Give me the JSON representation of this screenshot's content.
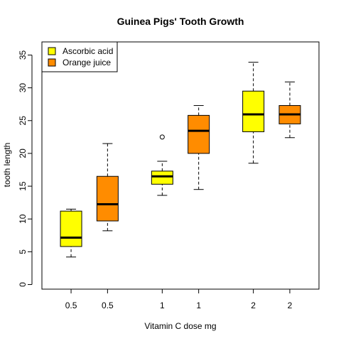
{
  "chart_data": {
    "type": "box",
    "title": "Guinea Pigs' Tooth Growth",
    "xlabel": "Vitamin C dose mg",
    "ylabel": "tooth length",
    "ylim": [
      -0.7,
      37.0
    ],
    "y_ticks": [
      0,
      5,
      10,
      15,
      20,
      25,
      30,
      35
    ],
    "legend_position": "top-left",
    "grid": false,
    "series": [
      {
        "name": "Ascorbic acid",
        "color": "#ffff00"
      },
      {
        "name": "Orange juice",
        "color": "#ff8c00"
      }
    ],
    "boxes": [
      {
        "label": "0.5",
        "series": 0,
        "x": 1.0,
        "whisker_low": 4.2,
        "q1": 5.8,
        "median": 7.15,
        "q3": 11.2,
        "whisker_high": 11.5,
        "outliers": []
      },
      {
        "label": "0.5",
        "series": 1,
        "x": 2.0,
        "whisker_low": 8.2,
        "q1": 9.7,
        "median": 12.25,
        "q3": 16.5,
        "whisker_high": 21.5,
        "outliers": []
      },
      {
        "label": "1",
        "series": 0,
        "x": 3.5,
        "whisker_low": 13.6,
        "q1": 15.3,
        "median": 16.5,
        "q3": 17.3,
        "whisker_high": 18.8,
        "outliers": [
          22.5
        ]
      },
      {
        "label": "1",
        "series": 1,
        "x": 4.5,
        "whisker_low": 14.5,
        "q1": 20.0,
        "median": 23.45,
        "q3": 25.8,
        "whisker_high": 27.3,
        "outliers": []
      },
      {
        "label": "2",
        "series": 0,
        "x": 6.0,
        "whisker_low": 18.5,
        "q1": 23.3,
        "median": 25.95,
        "q3": 29.5,
        "whisker_high": 33.9,
        "outliers": []
      },
      {
        "label": "2",
        "series": 1,
        "x": 7.0,
        "whisker_low": 22.4,
        "q1": 24.5,
        "median": 25.95,
        "q3": 27.3,
        "whisker_high": 30.9,
        "outliers": []
      }
    ]
  }
}
